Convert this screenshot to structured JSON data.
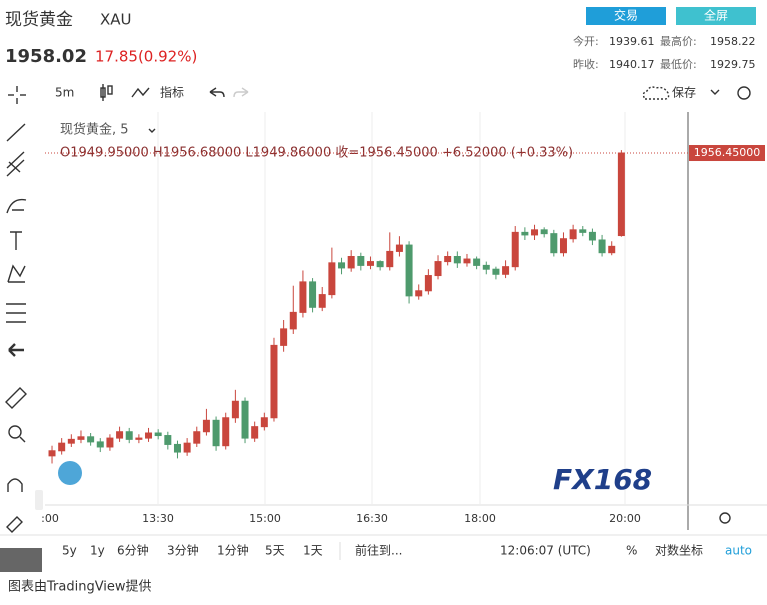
{
  "header": {
    "title": "现货黄金",
    "symbol": "XAU",
    "price": 1958.02,
    "change": "17.85(0.92%)",
    "buttons": [
      "交易",
      "全屏"
    ],
    "stats": [
      {
        "label": "今开:",
        "value": 1939.61
      },
      {
        "label": "最高价:",
        "value": 1958.22
      },
      {
        "label": "昨收:",
        "value": 1940.17
      },
      {
        "label": "最低价:",
        "value": 1929.75
      }
    ]
  },
  "toolbar": {
    "interval": "5m",
    "indicators": "指标",
    "save": "保存"
  },
  "chart_data": {
    "type": "candlestick",
    "legend_title": "现货黄金, 5",
    "legend_ohlc": "O1949.95000  H1956.68000  L1949.86000  收=1956.45000  +6.52000 (+0.33%)",
    "last_price_label": "1956.45000",
    "open": [
      1932.6,
      1933.0,
      1933.6,
      1933.9,
      1934.1,
      1933.7,
      1933.3,
      1934.0,
      1934.5,
      1933.9,
      1934.0,
      1934.4,
      1934.2,
      1933.5,
      1932.9,
      1933.6,
      1934.5,
      1935.4,
      1933.4,
      1935.6,
      1936.9,
      1934.0,
      1934.9,
      1935.6,
      1941.3,
      1942.6,
      1943.9,
      1946.3,
      1944.3,
      1945.3,
      1947.8,
      1947.4,
      1948.3,
      1947.6,
      1947.9,
      1947.5,
      1948.7,
      1949.2,
      1945.2,
      1945.6,
      1946.8,
      1947.9,
      1948.3,
      1947.8,
      1948.1,
      1947.6,
      1947.3,
      1946.9,
      1947.5,
      1950.2,
      1950.0,
      1950.4,
      1950.1,
      1948.6,
      1949.7,
      1950.4,
      1950.2,
      1949.6,
      1948.6,
      1949.95
    ],
    "high": [
      1933.4,
      1934.0,
      1934.3,
      1934.6,
      1934.4,
      1934.0,
      1934.3,
      1934.9,
      1934.8,
      1934.3,
      1934.8,
      1934.7,
      1934.5,
      1933.8,
      1934.0,
      1934.9,
      1936.3,
      1935.7,
      1936.0,
      1937.8,
      1937.2,
      1935.3,
      1936.0,
      1941.9,
      1943.3,
      1946.0,
      1947.2,
      1946.6,
      1945.9,
      1949.0,
      1948.2,
      1948.8,
      1948.6,
      1948.3,
      1948.0,
      1950.2,
      1949.9,
      1949.5,
      1946.1,
      1947.3,
      1948.4,
      1948.7,
      1948.7,
      1948.5,
      1948.3,
      1947.9,
      1947.5,
      1948.0,
      1950.7,
      1950.6,
      1950.8,
      1950.6,
      1950.4,
      1950.2,
      1950.8,
      1950.7,
      1950.5,
      1950.0,
      1949.5,
      1956.68
    ],
    "low": [
      1932.0,
      1932.7,
      1933.3,
      1933.6,
      1933.4,
      1932.9,
      1933.0,
      1933.7,
      1933.6,
      1933.6,
      1933.7,
      1933.9,
      1933.1,
      1932.4,
      1932.6,
      1933.3,
      1934.2,
      1933.0,
      1933.1,
      1935.2,
      1933.6,
      1933.7,
      1934.6,
      1935.3,
      1940.8,
      1942.2,
      1943.5,
      1943.9,
      1944.0,
      1945.0,
      1946.9,
      1947.1,
      1947.2,
      1947.3,
      1947.2,
      1947.2,
      1948.3,
      1944.6,
      1944.9,
      1945.3,
      1946.5,
      1947.6,
      1947.4,
      1947.5,
      1947.3,
      1946.9,
      1946.5,
      1946.6,
      1947.2,
      1949.6,
      1949.6,
      1949.8,
      1948.3,
      1948.3,
      1949.4,
      1949.9,
      1949.2,
      1948.3,
      1948.4,
      1949.86
    ],
    "close": [
      1933.0,
      1933.6,
      1933.9,
      1934.1,
      1933.7,
      1933.3,
      1934.0,
      1934.5,
      1933.9,
      1934.0,
      1934.4,
      1934.2,
      1933.5,
      1932.9,
      1933.6,
      1934.5,
      1935.4,
      1933.4,
      1935.6,
      1936.9,
      1934.0,
      1934.9,
      1935.6,
      1941.3,
      1942.6,
      1943.9,
      1946.3,
      1944.3,
      1945.3,
      1947.8,
      1947.4,
      1948.3,
      1947.6,
      1947.9,
      1947.5,
      1948.7,
      1949.2,
      1945.2,
      1945.6,
      1946.8,
      1947.9,
      1948.3,
      1947.8,
      1948.1,
      1947.6,
      1947.3,
      1946.9,
      1947.5,
      1950.2,
      1950.0,
      1950.4,
      1950.1,
      1948.6,
      1949.7,
      1950.4,
      1950.2,
      1949.6,
      1948.6,
      1949.1,
      1956.45
    ],
    "up_color": "#c9463d",
    "down_color": "#4e9a6d",
    "ylim": [
      1928.73,
      1959.68
    ],
    "x_labels": [
      ":00",
      "13:30",
      "15:00",
      "16:30",
      "18:00",
      "20:00"
    ],
    "watermark": "FX168"
  },
  "bottom_bar": {
    "ranges": [
      "5y",
      "1y",
      "6分钟",
      "3分钟",
      "1分钟",
      "5天",
      "1天"
    ],
    "goto": "前往到...",
    "time": "12:06:07 (UTC)",
    "percent": "%",
    "log": "对数坐标",
    "auto": "auto"
  },
  "footer": "图表由TradingView提供"
}
